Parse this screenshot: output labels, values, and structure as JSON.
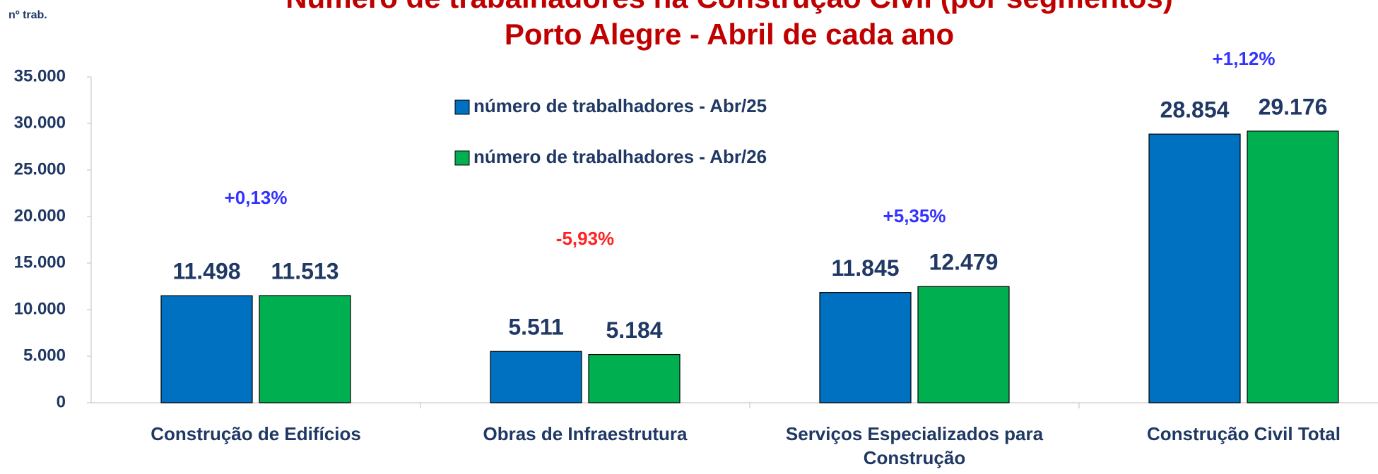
{
  "chart_data": {
    "type": "bar",
    "title": "Número de trabalhadores na Construção Civil (por segmentos)",
    "subtitle": "Porto Alegre - Abril de cada ano",
    "y_label": "nº trab.",
    "categories": [
      "Construção de Edifícios",
      "Obras de Infraestrutura",
      "Serviços Especializados  para\nConstrução",
      "Construção Civil Total"
    ],
    "series": [
      {
        "name": "número de trabalhadores - Abr/25",
        "color": "#0070c0",
        "values": [
          11498,
          5511,
          11845,
          28854
        ],
        "value_labels": [
          "11.498",
          "5.511",
          "11.845",
          "28.854"
        ]
      },
      {
        "name": "número de trabalhadores - Abr/26",
        "color": "#00b050",
        "values": [
          11513,
          5184,
          12479,
          29176
        ],
        "value_labels": [
          "11.513",
          "5.184",
          "12.479",
          "29.176"
        ]
      }
    ],
    "annotations": [
      {
        "text": "+0,13%",
        "color": "#3333ff"
      },
      {
        "text": "-5,93%",
        "color": "#ff2222"
      },
      {
        "text": "+5,35%",
        "color": "#3333ff"
      },
      {
        "text": "+1,12%",
        "color": "#3333ff"
      }
    ],
    "ylim": [
      0,
      35000
    ],
    "yticks": [
      0,
      {
        "value": 5000,
        "label": "5.000"
      },
      {
        "value": 10000,
        "label": "10.000"
      },
      {
        "value": 15000,
        "label": "15.000"
      },
      {
        "value": 20000,
        "label": "20.000"
      },
      {
        "value": 25000,
        "label": "25.000"
      },
      {
        "value": 30000,
        "label": "30.000"
      },
      {
        "value": 35000,
        "label": "35.000"
      }
    ],
    "legend": "top-center"
  }
}
